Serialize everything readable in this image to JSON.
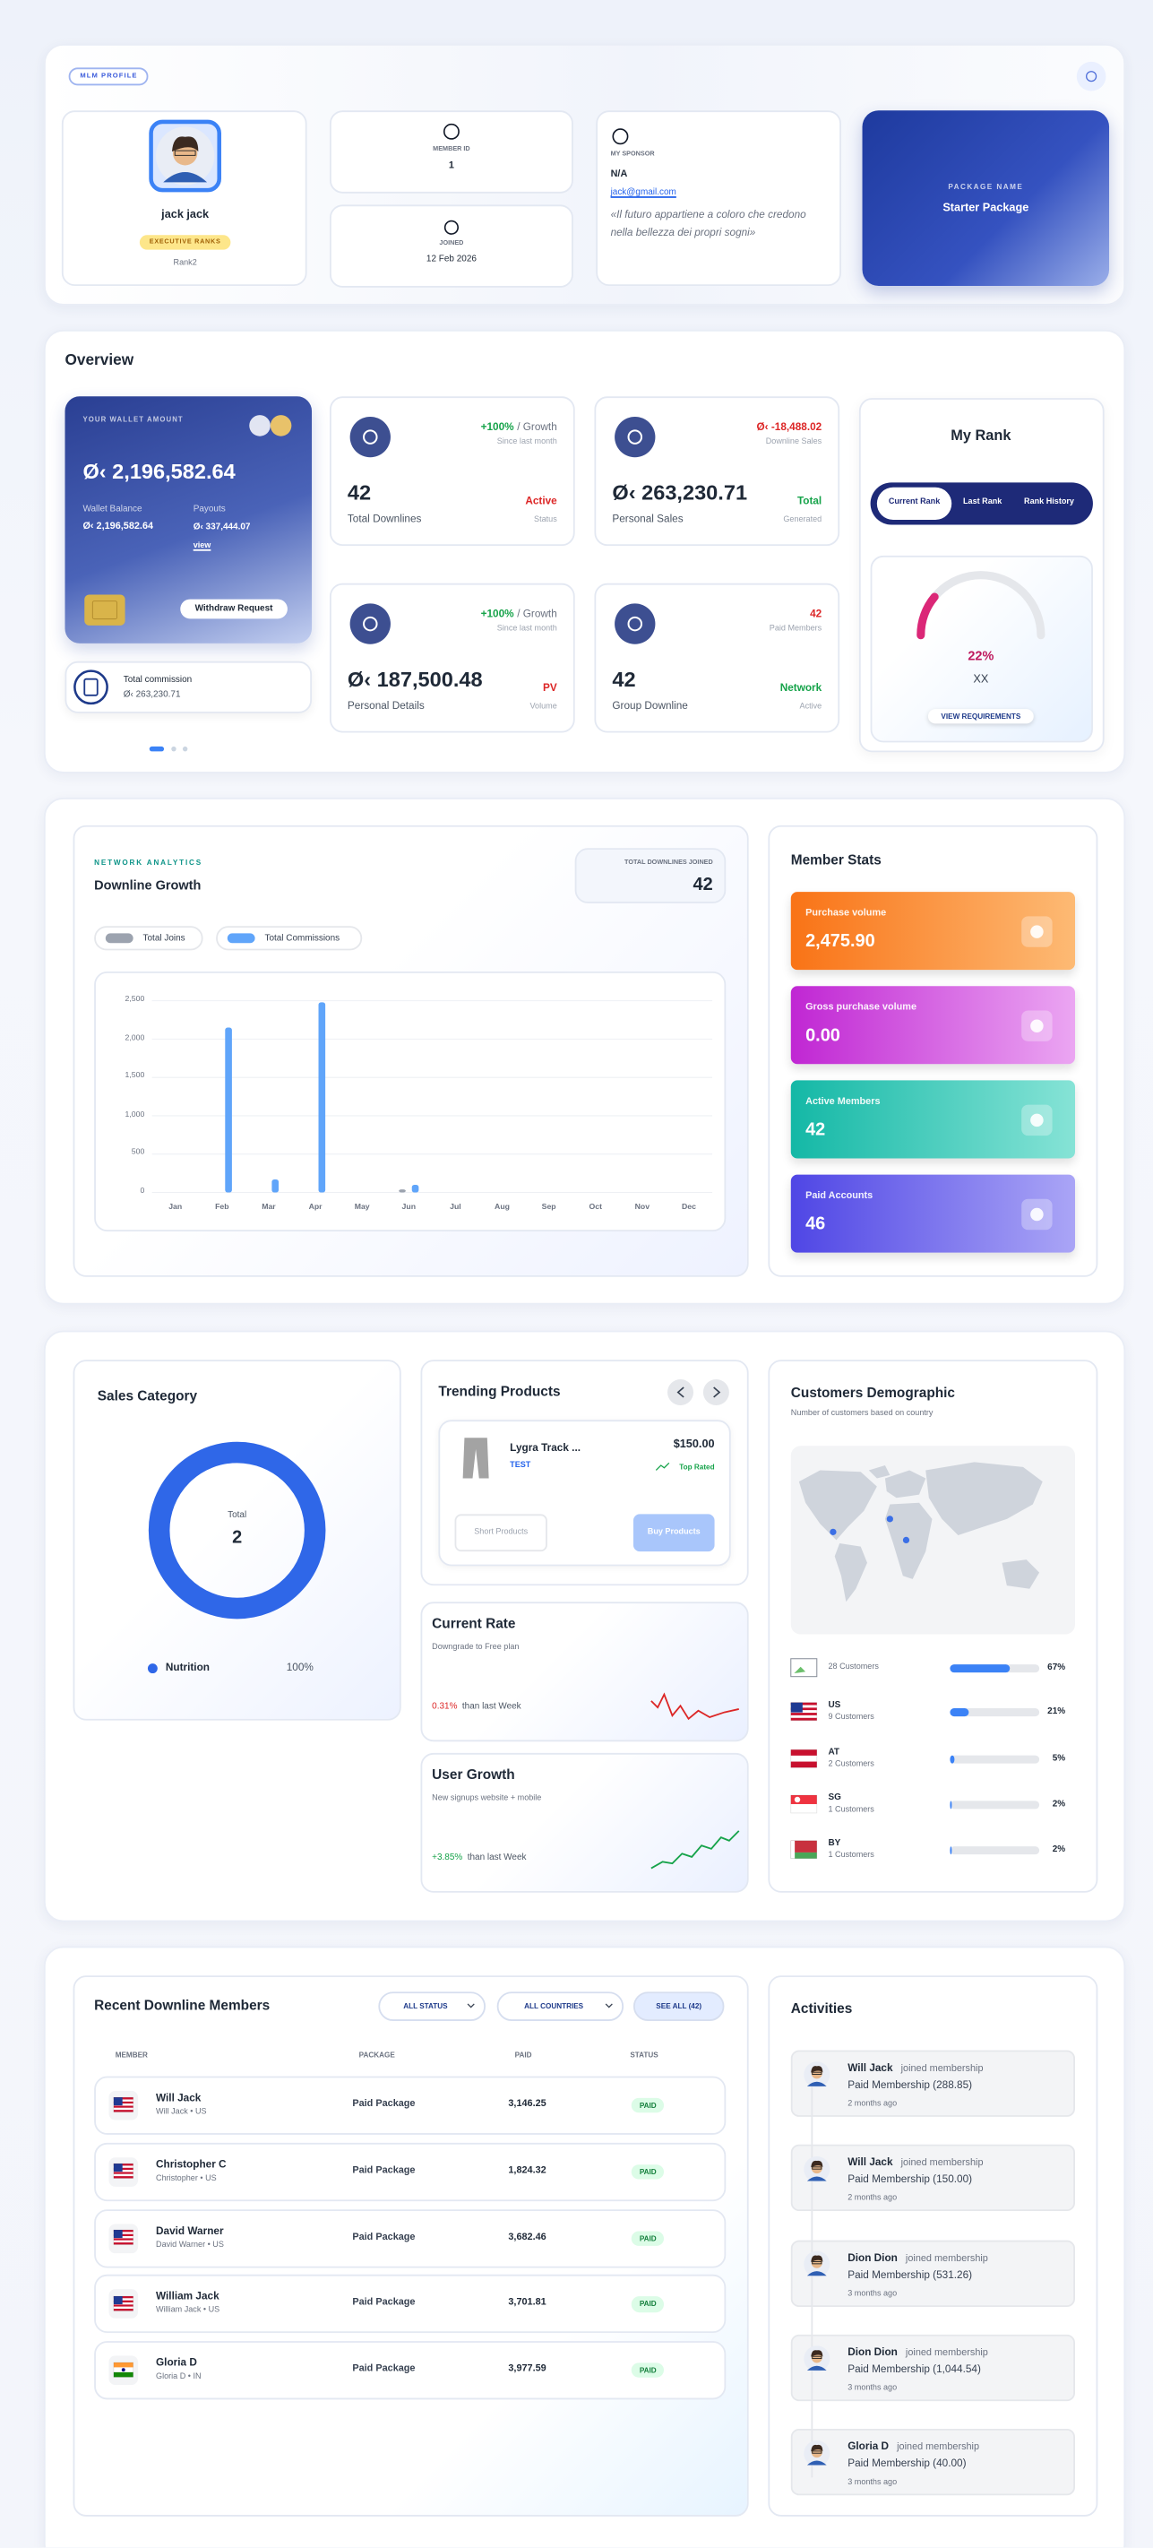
{
  "profile": {
    "label": "MLM PROFILE",
    "name": "jack jack",
    "rank_badge": "EXECUTIVE RANKS",
    "rank": "Rank2",
    "member_id_label": "MEMBER ID",
    "member_id": "1",
    "joined_label": "JOINED",
    "joined": "12 Feb 2026",
    "sponsor_label": "MY SPONSOR",
    "sponsor": "N/A",
    "sponsor_email": "jack@gmail.com",
    "quote": "«Il futuro appartiene a coloro che credono nella bellezza dei propri sogni»",
    "package_label": "PACKAGE NAME",
    "package": "Starter Package"
  },
  "overview": {
    "title": "Overview",
    "wallet": {
      "label": "YOUR WALLET AMOUNT",
      "amount": "Ø‹ 2,196,582.64",
      "balance_label": "Wallet Balance",
      "balance": "Ø‹ 2,196,582.64",
      "payouts_label": "Payouts",
      "payouts": "Ø‹ 337,444.07",
      "view": "view",
      "button": "Withdraw Request"
    },
    "commission": {
      "label": "Total commission",
      "value": "Ø‹ 263,230.71"
    },
    "stats": [
      {
        "top": "+100%",
        "top_color": "#16a34a",
        "top_suffix": "/ Growth",
        "top_sub": "Since last month",
        "value": "42",
        "label": "Total Downlines",
        "status": "Active",
        "status_color": "#dc2626",
        "status_sub": "Status"
      },
      {
        "top": "Ø‹ -18,488.02",
        "top_color": "#dc2626",
        "top_sub": "Downline Sales",
        "value": "Ø‹ 263,230.71",
        "label": "Personal Sales",
        "status": "Total",
        "status_color": "#16a34a",
        "status_sub": "Generated"
      },
      {
        "top": "+100%",
        "top_color": "#16a34a",
        "top_suffix": "/ Growth",
        "top_sub": "Since last month",
        "value": "Ø‹ 187,500.48",
        "label": "Personal Details",
        "status": "PV",
        "status_color": "#dc2626",
        "status_sub": "Volume"
      },
      {
        "top": "42",
        "top_color": "#dc2626",
        "top_sub": "Paid Members",
        "value": "42",
        "label": "Group Downline",
        "status": "Network",
        "status_color": "#16a34a",
        "status_sub": "Active"
      }
    ],
    "rank": {
      "title": "My Rank",
      "tabs": [
        "Current Rank",
        "Last Rank",
        "Rank History"
      ],
      "percent": 22,
      "percent_label": "22%",
      "level": "XX",
      "button": "VIEW REQUIREMENTS"
    }
  },
  "network_analytics": {
    "label": "NETWORK ANALYTICS",
    "total_label": "TOTAL DOWNLINES JOINED",
    "total": "42"
  },
  "chart_data": {
    "type": "bar",
    "title": "Downline Growth",
    "categories": [
      "Jan",
      "Feb",
      "Mar",
      "Apr",
      "May",
      "Jun",
      "Jul",
      "Aug",
      "Sep",
      "Oct",
      "Nov",
      "Dec"
    ],
    "series": [
      {
        "name": "Total Joins",
        "color": "#9ca3af",
        "values": [
          0,
          0,
          0,
          0,
          0,
          40,
          0,
          0,
          0,
          0,
          0,
          0
        ]
      },
      {
        "name": "Total Commissions",
        "color": "#60a5fa",
        "values": [
          0,
          2150,
          170,
          2480,
          0,
          100,
          0,
          0,
          0,
          0,
          0,
          0
        ]
      }
    ],
    "ylim": [
      0,
      2500
    ],
    "yticks": [
      0,
      500,
      {
        "value": 1000,
        "label": "1,000"
      },
      {
        "value": 1500,
        "label": "1,500"
      },
      {
        "value": 2000,
        "label": "2,000"
      },
      {
        "value": 2500,
        "label": "2,500"
      }
    ],
    "grid": true
  },
  "member_stats": {
    "title": "Member Stats",
    "items": [
      {
        "label": "Purchase volume",
        "value": "2,475.90",
        "color": "linear-gradient(90deg,#f97316,#fdba74)"
      },
      {
        "label": "Gross purchase volume",
        "value": "0.00",
        "color": "linear-gradient(90deg,#c026d3,#eba6f2)"
      },
      {
        "label": "Active Members",
        "value": "42",
        "color": "linear-gradient(90deg,#14b8a6,#86e3d6)"
      },
      {
        "label": "Paid Accounts",
        "value": "46",
        "color": "linear-gradient(90deg,#4f46e5,#aaa5f6)"
      }
    ]
  },
  "sales_category": {
    "title": "Sales Category",
    "total_label": "Total",
    "total": "2",
    "legend": "Nutrition",
    "value": 100,
    "value_label": "100%",
    "color": "#2f67e8"
  },
  "trending": {
    "title": "Trending Products",
    "product": "Lygra Track ...",
    "tag": "TEST",
    "price": "$150.00",
    "badge": "Top Rated",
    "buttons": [
      "Short Products",
      "Buy Products"
    ]
  },
  "current_rate": {
    "title": "Current Rate",
    "subtitle": "Downgrade to Free plan",
    "change": "0.31%",
    "change_suffix": "than last Week"
  },
  "user_growth": {
    "title": "User Growth",
    "subtitle": "New signups website + mobile",
    "change": "+3.85%",
    "change_suffix": "than last Week"
  },
  "demographics": {
    "title": "Customers Demographic",
    "subtitle": "Number of customers based on country",
    "rows": [
      {
        "customers": "28 Customers",
        "percent": 67,
        "percent_label": "67%"
      },
      {
        "country": "US",
        "customers": "9 Customers",
        "percent": 21,
        "percent_label": "21%"
      },
      {
        "country": "AT",
        "customers": "2 Customers",
        "percent": 5,
        "percent_label": "5%"
      },
      {
        "country": "SG",
        "customers": "1 Customers",
        "percent": 2,
        "percent_label": "2%"
      },
      {
        "country": "BY",
        "customers": "1 Customers",
        "percent": 2,
        "percent_label": "2%"
      }
    ]
  },
  "recent": {
    "title": "Recent Downline Members",
    "filters": [
      "ALL STATUS",
      "ALL COUNTRIES",
      "SEE ALL (42)"
    ],
    "headers": [
      "MEMBER",
      "PACKAGE",
      "PAID",
      "STATUS"
    ],
    "rows": [
      {
        "name": "Will Jack",
        "sub": "Will Jack • US",
        "package": "Paid Package",
        "paid": "3,146.25",
        "status": "PAID"
      },
      {
        "name": "Christopher C",
        "sub": "Christopher • US",
        "package": "Paid Package",
        "paid": "1,824.32",
        "status": "PAID"
      },
      {
        "name": "David Warner",
        "sub": "David Warner • US",
        "package": "Paid Package",
        "paid": "3,682.46",
        "status": "PAID"
      },
      {
        "name": "William Jack",
        "sub": "William Jack • US",
        "package": "Paid Package",
        "paid": "3,701.81",
        "status": "PAID"
      },
      {
        "name": "Gloria D",
        "sub": "Gloria D • IN",
        "package": "Paid Package",
        "paid": "3,977.59",
        "status": "PAID"
      }
    ]
  },
  "activities": {
    "title": "Activities",
    "items": [
      {
        "name": "Will Jack",
        "action": "joined membership",
        "detail": "Paid Membership (288.85)",
        "time": "2 months ago"
      },
      {
        "name": "Will Jack",
        "action": "joined membership",
        "detail": "Paid Membership (150.00)",
        "time": "2 months ago"
      },
      {
        "name": "Dion Dion",
        "action": "joined membership",
        "detail": "Paid Membership (531.26)",
        "time": "3 months ago"
      },
      {
        "name": "Dion Dion",
        "action": "joined membership",
        "detail": "Paid Membership (1,044.54)",
        "time": "3 months ago"
      },
      {
        "name": "Gloria D",
        "action": "joined membership",
        "detail": "Paid Membership (40.00)",
        "time": "3 months ago"
      }
    ]
  }
}
